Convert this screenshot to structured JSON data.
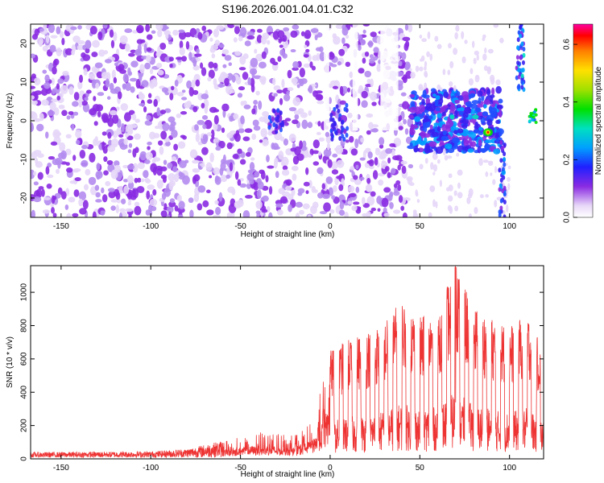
{
  "title": "S196.2026.001.04.01.C32",
  "chart_data": [
    {
      "type": "heatmap",
      "xlabel": "Height of straight line (km)",
      "ylabel": "Frequency (Hz)",
      "xlim": [
        -167,
        119
      ],
      "ylim": [
        -25,
        25
      ],
      "xticks": [
        -150,
        -100,
        -50,
        0,
        50,
        100
      ],
      "yticks": [
        -20,
        -10,
        0,
        10,
        20
      ],
      "colorbar": {
        "label": "Normalized spectral amplitude",
        "range": [
          0,
          0.67
        ],
        "ticks": [
          0.0,
          0.2,
          0.4,
          0.6
        ],
        "tick_labels": [
          "0.0",
          "0.2",
          "0.4",
          "0.6"
        ]
      },
      "features": [
        {
          "x_range": [
            -167,
            45
          ],
          "level": "low",
          "note": "broadband noise"
        },
        {
          "x_range": [
            45,
            95
          ],
          "y_range": [
            -8,
            8
          ],
          "level": "medium-high"
        },
        {
          "x_range": [
            84,
            92
          ],
          "y_center": -2,
          "peak_amplitude": 0.67
        },
        {
          "x_range": [
            94,
            98
          ],
          "y_range": [
            -25,
            -5
          ],
          "level": "medium"
        },
        {
          "x_range": [
            103,
            109
          ],
          "y_range": [
            10,
            25
          ],
          "level": "medium"
        },
        {
          "x_range": [
            110,
            118
          ],
          "y_center": 1,
          "level": "high"
        }
      ]
    },
    {
      "type": "line",
      "xlabel": "Height of straight line (km)",
      "ylabel": "SNR (10 * v/v)",
      "xlim": [
        -167,
        119
      ],
      "ylim": [
        0,
        1160
      ],
      "xticks": [
        -150,
        -100,
        -50,
        0,
        50,
        100
      ],
      "yticks": [
        0,
        200,
        400,
        600,
        800,
        1000
      ],
      "color": "#ee3333",
      "envelope": {
        "x": [
          -167,
          -100,
          -80,
          -60,
          -40,
          -20,
          -10,
          -5,
          0,
          10,
          20,
          30,
          40,
          50,
          60,
          70,
          80,
          90,
          100,
          110,
          119
        ],
        "y_max": [
          40,
          45,
          60,
          110,
          160,
          140,
          220,
          420,
          650,
          720,
          760,
          820,
          960,
          850,
          900,
          1160,
          920,
          850,
          800,
          880,
          650
        ]
      }
    }
  ]
}
